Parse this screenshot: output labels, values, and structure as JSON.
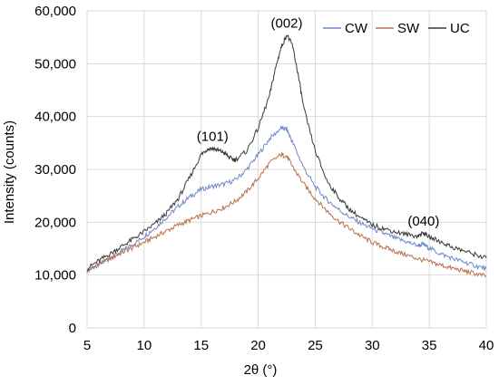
{
  "chart_data": {
    "type": "line",
    "title": "",
    "xlabel": "2θ (°)",
    "ylabel": "Intensity (counts)",
    "xlim": [
      5,
      40
    ],
    "ylim": [
      0,
      60000
    ],
    "x_ticks": [
      5,
      10,
      15,
      20,
      25,
      30,
      35,
      40
    ],
    "y_ticks": [
      0,
      10000,
      20000,
      30000,
      40000,
      50000,
      60000
    ],
    "x_tick_labels": [
      "5",
      "10",
      "15",
      "20",
      "25",
      "30",
      "35",
      "40"
    ],
    "y_tick_labels": [
      "0",
      "10,000",
      "20,000",
      "30,000",
      "40,000",
      "50,000",
      "60,000"
    ],
    "grid": {
      "vertical": true,
      "horizontal": true
    },
    "legend_position": "top-right",
    "annotations": [
      {
        "text": "(101)",
        "x": 16,
        "y": 34000
      },
      {
        "text": "(002)",
        "x": 22.5,
        "y": 55500
      },
      {
        "text": "(040)",
        "x": 34.5,
        "y": 18000
      }
    ],
    "series": [
      {
        "name": "CW",
        "color": "#6f87c9",
        "x": [
          5,
          6,
          7,
          8,
          9,
          10,
          11,
          12,
          13,
          14,
          15,
          16,
          17,
          18,
          19,
          20,
          21,
          22,
          22.5,
          23,
          24,
          25,
          26,
          27,
          28,
          29,
          30,
          31,
          32,
          33,
          34,
          34.5,
          35,
          36,
          37,
          38,
          39,
          40
        ],
        "y": [
          10800,
          12000,
          13200,
          14500,
          15800,
          17300,
          19000,
          21000,
          23000,
          24800,
          26200,
          26800,
          27200,
          28000,
          30000,
          32800,
          35800,
          37800,
          37600,
          35200,
          30300,
          26700,
          24300,
          22500,
          21000,
          19800,
          18800,
          17900,
          17000,
          16300,
          15600,
          15800,
          15100,
          14000,
          13200,
          12500,
          11800,
          11200
        ]
      },
      {
        "name": "SW",
        "color": "#b86f4a",
        "x": [
          5,
          6,
          7,
          8,
          9,
          10,
          11,
          12,
          13,
          14,
          15,
          16,
          17,
          18,
          19,
          20,
          21,
          22,
          22.5,
          23,
          24,
          25,
          26,
          27,
          28,
          29,
          30,
          31,
          32,
          33,
          34,
          35,
          36,
          37,
          38,
          39,
          40
        ],
        "y": [
          10800,
          12000,
          13100,
          14200,
          15200,
          16200,
          17300,
          18400,
          19500,
          20400,
          21200,
          22000,
          22800,
          24000,
          25800,
          28300,
          31200,
          32800,
          32500,
          30600,
          27200,
          24500,
          22200,
          20300,
          18800,
          17400,
          16200,
          15300,
          14500,
          13800,
          13100,
          12500,
          11900,
          11300,
          10800,
          10300,
          9800
        ]
      },
      {
        "name": "UC",
        "color": "#3a3a3a",
        "x": [
          5,
          6,
          7,
          8,
          9,
          10,
          11,
          12,
          13,
          14,
          15,
          15.5,
          16,
          16.5,
          17,
          17.5,
          18,
          19,
          20,
          21,
          21.5,
          22,
          22.5,
          23,
          23.5,
          24,
          25,
          26,
          27,
          28,
          29,
          30,
          31,
          32,
          33,
          34,
          34.5,
          35,
          36,
          37,
          38,
          39,
          40
        ],
        "y": [
          11200,
          12700,
          14000,
          15400,
          16800,
          18200,
          19800,
          21800,
          24500,
          28500,
          32800,
          33800,
          34000,
          33600,
          33200,
          32200,
          31800,
          33500,
          37800,
          44000,
          49000,
          53000,
          55500,
          53500,
          48000,
          41500,
          33500,
          28000,
          24800,
          22500,
          20800,
          19500,
          18800,
          18200,
          17700,
          17400,
          18000,
          17200,
          16300,
          15300,
          14600,
          13900,
          13200
        ]
      }
    ]
  }
}
